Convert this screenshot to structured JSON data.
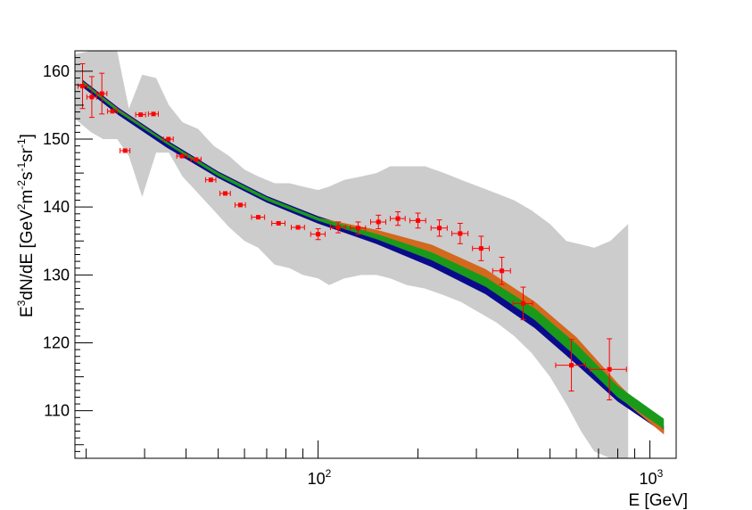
{
  "chart_data": {
    "type": "scatter",
    "xlabel": "E [GeV]",
    "ylabel": {
      "parts": [
        "E",
        "3",
        "dN/dE [GeV",
        "2",
        "m",
        "-2",
        "s",
        "-1",
        "sr",
        "-1",
        "]"
      ]
    },
    "x_scale": "log",
    "xlim": [
      18.5,
      1200
    ],
    "ylim": [
      103,
      163
    ],
    "y_ticks": [
      110,
      120,
      130,
      140,
      150,
      160
    ],
    "y_tick_labels": [
      "110",
      "120",
      "130",
      "140",
      "150",
      "160"
    ],
    "x_major_ticks": [
      100,
      1000
    ],
    "x_tick_labels": [
      {
        "base": "10",
        "exp": "2"
      },
      {
        "base": "10",
        "exp": "3"
      }
    ],
    "grid": false,
    "colors": {
      "data_points": "#ff0000",
      "sys_band": "#cccccc",
      "model_navy": "#0a0a8c",
      "model_orange": "#d2691e",
      "model_green": "#1a9a1a"
    },
    "systematic_band": {
      "x": [
        18.5,
        20.7,
        22.5,
        24.8,
        26.9,
        29.5,
        32.5,
        35.5,
        39.0,
        43.5,
        48.5,
        54.0,
        60.0,
        66.0,
        74.0,
        82.0,
        90.0,
        100.0,
        108.0,
        120.0,
        135.0,
        150.0,
        165.0,
        185.0,
        210.0,
        240.0,
        270.0,
        305.0,
        345.0,
        390.0,
        440.0,
        500.0,
        560.0,
        620.0,
        680.0,
        760.0,
        860.0
      ],
      "upper": [
        162.5,
        163,
        163,
        163,
        154.5,
        159.5,
        159,
        155,
        152.5,
        151.5,
        149,
        147.5,
        145.5,
        144.5,
        143.5,
        143.5,
        143,
        142.5,
        143,
        144,
        144.5,
        145,
        146,
        146,
        146,
        145,
        144,
        143,
        142,
        141,
        139.5,
        137.5,
        135,
        134.5,
        134,
        135,
        137.5
      ],
      "lower": [
        153,
        151,
        150,
        150,
        147.5,
        141.5,
        148,
        148,
        144.5,
        142,
        139.5,
        137,
        135,
        134,
        131.5,
        131,
        130,
        129.5,
        128.5,
        129.5,
        130,
        130,
        129.5,
        128.5,
        128,
        127,
        126,
        124.5,
        123,
        121,
        118.5,
        115,
        111,
        107,
        104,
        103,
        103
      ]
    },
    "models": [
      {
        "x": [
          19.5,
          25,
          35,
          50,
          70,
          100,
          150,
          220,
          320,
          450,
          600,
          800,
          1100
        ],
        "upper": [
          158.7,
          154.6,
          149.8,
          145.2,
          141.6,
          138.6,
          135.9,
          132.8,
          129.0,
          124.4,
          119.4,
          113.2,
          107.8
        ],
        "lower": [
          157.7,
          153.6,
          148.8,
          144.3,
          140.7,
          137.6,
          134.6,
          131.2,
          127.2,
          122.2,
          116.9,
          111.4,
          106.8
        ]
      },
      {
        "x": [
          19.5,
          25,
          35,
          50,
          70,
          100,
          150,
          220,
          320,
          450,
          600,
          800,
          1100
        ],
        "upper": [
          158.5,
          154.4,
          149.6,
          145.0,
          141.4,
          138.4,
          136.6,
          134.4,
          130.8,
          126.0,
          120.8,
          114.0,
          107.2
        ],
        "lower": [
          158.3,
          154.2,
          149.4,
          144.8,
          141.2,
          138.2,
          135.9,
          133.4,
          129.6,
          124.6,
          119.0,
          112.2,
          106.6
        ]
      },
      {
        "x": [
          19.5,
          25,
          35,
          50,
          70,
          100,
          150,
          220,
          320,
          450,
          600,
          800,
          1100
        ],
        "upper": [
          158.5,
          154.3,
          149.6,
          145.0,
          141.4,
          138.4,
          136.0,
          133.3,
          129.6,
          125.0,
          119.8,
          113.6,
          108.8
        ],
        "lower": [
          158.2,
          154.0,
          149.3,
          144.6,
          141.0,
          138.0,
          135.3,
          132.2,
          128.3,
          123.4,
          118.0,
          112.0,
          107.4
        ]
      }
    ],
    "points": [
      {
        "x": 19.5,
        "y": 157.8,
        "xerr": 0.6,
        "yerr": 3.3
      },
      {
        "x": 20.8,
        "y": 156.2,
        "xerr": 0.7,
        "yerr": 3.0
      },
      {
        "x": 22.3,
        "y": 156.7,
        "xerr": 0.8,
        "yerr": 3.0
      },
      {
        "x": 24.0,
        "y": 154.1,
        "xerr": 0.8,
        "yerr": 0
      },
      {
        "x": 26.2,
        "y": 148.3,
        "xerr": 0.9,
        "yerr": 0
      },
      {
        "x": 29.2,
        "y": 153.6,
        "xerr": 1.0,
        "yerr": 0
      },
      {
        "x": 31.9,
        "y": 153.7,
        "xerr": 1.1,
        "yerr": 0
      },
      {
        "x": 35.4,
        "y": 150.0,
        "xerr": 1.2,
        "yerr": 0
      },
      {
        "x": 38.9,
        "y": 147.5,
        "xerr": 1.4,
        "yerr": 0
      },
      {
        "x": 42.9,
        "y": 147.0,
        "xerr": 1.5,
        "yerr": 0
      },
      {
        "x": 47.5,
        "y": 144.0,
        "xerr": 1.7,
        "yerr": 0
      },
      {
        "x": 52.5,
        "y": 142.0,
        "xerr": 1.9,
        "yerr": 0
      },
      {
        "x": 58.3,
        "y": 140.3,
        "xerr": 2.1,
        "yerr": 0
      },
      {
        "x": 66.0,
        "y": 138.5,
        "xerr": 3.0,
        "yerr": 0
      },
      {
        "x": 76.0,
        "y": 137.6,
        "xerr": 3.5,
        "yerr": 0
      },
      {
        "x": 87.0,
        "y": 137.0,
        "xerr": 4.0,
        "yerr": 0
      },
      {
        "x": 100.0,
        "y": 136.0,
        "xerr": 5.0,
        "yerr": 0.8
      },
      {
        "x": 115.0,
        "y": 137.0,
        "xerr": 6.0,
        "yerr": 0.8
      },
      {
        "x": 132.0,
        "y": 136.9,
        "xerr": 7.0,
        "yerr": 0.9
      },
      {
        "x": 152.0,
        "y": 137.8,
        "xerr": 8.0,
        "yerr": 1.0
      },
      {
        "x": 174.0,
        "y": 138.3,
        "xerr": 9.0,
        "yerr": 1.0
      },
      {
        "x": 200.0,
        "y": 138.0,
        "xerr": 11.0,
        "yerr": 1.1
      },
      {
        "x": 232.0,
        "y": 136.9,
        "xerr": 13.0,
        "yerr": 1.2
      },
      {
        "x": 268.0,
        "y": 136.1,
        "xerr": 15.0,
        "yerr": 1.5
      },
      {
        "x": 310.0,
        "y": 133.9,
        "xerr": 18.0,
        "yerr": 1.8
      },
      {
        "x": 358.0,
        "y": 130.6,
        "xerr": 22.0,
        "yerr": 2.0
      },
      {
        "x": 415.0,
        "y": 125.8,
        "xerr": 28.0,
        "yerr": 2.4
      },
      {
        "x": 580.0,
        "y": 116.7,
        "xerr": 60.0,
        "yerr": 3.8
      },
      {
        "x": 755.0,
        "y": 116.1,
        "xerr": 95.0,
        "yerr": 4.5
      }
    ]
  }
}
